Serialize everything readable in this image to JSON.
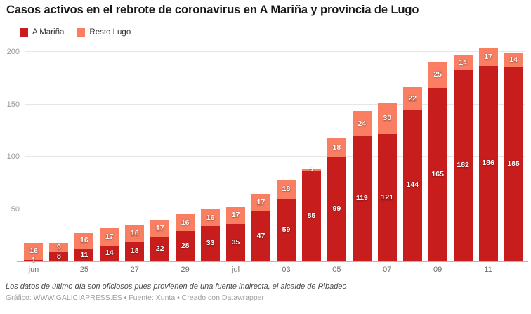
{
  "header": {
    "title": "Casos activos en el rebrote de coronavirus en A Mariña y provincia de Lugo"
  },
  "legend": {
    "items": [
      {
        "label": "A Mariña",
        "color": "#c71e1d"
      },
      {
        "label": "Resto Lugo",
        "color": "#f97e62"
      }
    ]
  },
  "chart_data": {
    "type": "bar",
    "stacked": true,
    "title": "Casos activos en el rebrote de coronavirus en A Mariña y provincia de Lugo",
    "categories": [
      "jun",
      "",
      "25",
      "",
      "27",
      "",
      "29",
      "",
      "jul",
      "",
      "03",
      "",
      "05",
      "",
      "07",
      "",
      "09",
      "",
      "11",
      ""
    ],
    "series": [
      {
        "name": "A Mariña",
        "color": "#c71e1d",
        "values": [
          1,
          8,
          11,
          14,
          18,
          22,
          28,
          33,
          35,
          47,
          59,
          85,
          99,
          119,
          121,
          144,
          165,
          182,
          186,
          185
        ]
      },
      {
        "name": "Resto Lugo",
        "color": "#f97e62",
        "values": [
          16,
          9,
          16,
          17,
          16,
          17,
          16,
          16,
          17,
          17,
          18,
          2,
          18,
          24,
          30,
          22,
          25,
          14,
          17,
          14
        ]
      }
    ],
    "value_labels": true,
    "xlabel": "",
    "ylabel": "",
    "ylim": [
      0,
      210
    ],
    "y_ticks": [
      50,
      100,
      150,
      200
    ],
    "grid": true,
    "legend_position": "top-left"
  },
  "footer": {
    "note": "Los datos de último día son oficiosos pues provienen de una fuente indirecta, el alcalde de Ribadeo",
    "credit": "Gráfico: WWW.GALICIAPRESS.ES • Fuente: Xunta • Creado con Datawrapper"
  },
  "colors": {
    "a_marina": "#c71e1d",
    "resto_lugo": "#f97e62",
    "gridline": "#e6e6e6",
    "baseline": "#b5b5b5",
    "y_tick_text": "#9a9a9a",
    "x_tick_text": "#6e6e6e",
    "value_label_text": "#ffffff"
  }
}
